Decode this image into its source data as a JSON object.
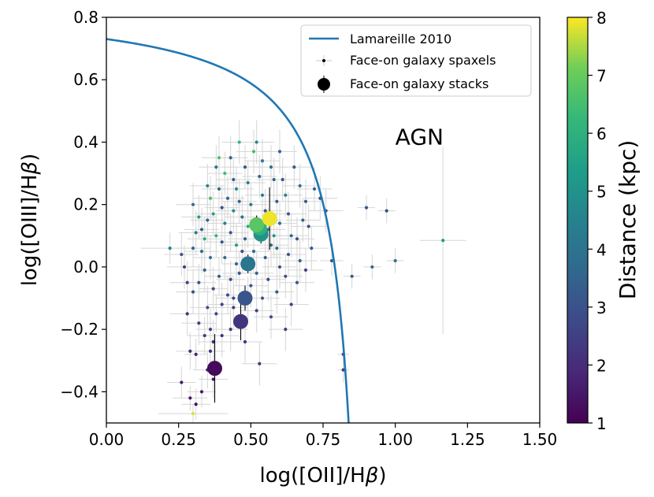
{
  "chart_data": {
    "type": "scatter",
    "xlabel": "log([OII]/H",
    "ylabel": "log([OIII]/H",
    "label_greek": "β",
    "label_close": ")",
    "xlim": [
      0.0,
      1.5
    ],
    "ylim": [
      -0.5,
      0.8
    ],
    "x_ticks": [
      0.0,
      0.25,
      0.5,
      0.75,
      1.0,
      1.25,
      1.5
    ],
    "x_tick_labels": [
      "0.00",
      "0.25",
      "0.50",
      "0.75",
      "1.00",
      "1.25",
      "1.50"
    ],
    "y_ticks": [
      -0.4,
      -0.2,
      0.0,
      0.2,
      0.4,
      0.6,
      0.8
    ],
    "y_tick_labels": [
      "−0.4",
      "−0.2",
      "0.0",
      "0.2",
      "0.4",
      "0.6",
      "0.8"
    ],
    "annotation": {
      "text": "AGN",
      "x": 1.0,
      "y": 0.4
    },
    "curve": {
      "name": "Lamareille 2010",
      "color": "#1f77b4",
      "formula": "0.11/(x-0.92)+0.85"
    },
    "legend": {
      "position": "upper-right",
      "entries": [
        "Lamareille 2010",
        "Face-on galaxy spaxels",
        "Face-on galaxy stacks"
      ]
    },
    "colorbar": {
      "label": "Distance (kpc)",
      "range": [
        1,
        8
      ],
      "ticks": [
        1,
        2,
        3,
        4,
        5,
        6,
        7,
        8
      ],
      "tick_labels": [
        "1",
        "2",
        "3",
        "4",
        "5",
        "6",
        "7",
        "8"
      ],
      "colormap": "viridis"
    },
    "stacks": [
      {
        "x": 0.375,
        "y": -0.325,
        "dist": 1.2,
        "xerr": 0.01,
        "yerr": 0.11
      },
      {
        "x": 0.465,
        "y": -0.175,
        "dist": 2.2,
        "xerr": 0.01,
        "yerr": 0.06
      },
      {
        "x": 0.48,
        "y": -0.1,
        "dist": 3.1,
        "xerr": 0.01,
        "yerr": 0.04
      },
      {
        "x": 0.49,
        "y": 0.01,
        "dist": 4.1,
        "xerr": 0.01,
        "yerr": 0.03
      },
      {
        "x": 0.535,
        "y": 0.105,
        "dist": 5.0,
        "xerr": 0.012,
        "yerr": 0.03
      },
      {
        "x": 0.53,
        "y": 0.125,
        "dist": 6.0,
        "xerr": 0.012,
        "yerr": 0.03
      },
      {
        "x": 0.52,
        "y": 0.135,
        "dist": 6.8,
        "xerr": 0.01,
        "yerr": 0.03
      },
      {
        "x": 0.565,
        "y": 0.155,
        "dist": 7.9,
        "xerr": 0.012,
        "yerr": 0.1
      }
    ],
    "spaxels": [
      {
        "x": 0.22,
        "y": 0.06,
        "d": 4.5,
        "xe": 0.1,
        "ye": 0.05
      },
      {
        "x": 0.26,
        "y": -0.37,
        "d": 1.5,
        "xe": 0.05,
        "ye": 0.05
      },
      {
        "x": 0.29,
        "y": -0.42,
        "d": 1.4,
        "xe": 0.06,
        "ye": 0.04
      },
      {
        "x": 0.3,
        "y": -0.47,
        "d": 7.8,
        "xe": 0.12,
        "ye": 0.03
      },
      {
        "x": 0.29,
        "y": -0.27,
        "d": 2.0,
        "xe": 0.05,
        "ye": 0.06
      },
      {
        "x": 0.31,
        "y": -0.28,
        "d": 1.8,
        "xe": 0.04,
        "ye": 0.05
      },
      {
        "x": 0.33,
        "y": -0.4,
        "d": 1.5,
        "xe": 0.05,
        "ye": 0.05
      },
      {
        "x": 0.34,
        "y": -0.22,
        "d": 2.3,
        "xe": 0.06,
        "ye": 0.06
      },
      {
        "x": 0.36,
        "y": -0.27,
        "d": 2.1,
        "xe": 0.05,
        "ye": 0.06
      },
      {
        "x": 0.37,
        "y": -0.24,
        "d": 2.0,
        "xe": 0.05,
        "ye": 0.07
      },
      {
        "x": 0.36,
        "y": -0.2,
        "d": 2.6,
        "xe": 0.05,
        "ye": 0.07
      },
      {
        "x": 0.38,
        "y": -0.15,
        "d": 2.7,
        "xe": 0.05,
        "ye": 0.06
      },
      {
        "x": 0.35,
        "y": -0.13,
        "d": 2.9,
        "xe": 0.06,
        "ye": 0.07
      },
      {
        "x": 0.3,
        "y": -0.08,
        "d": 3.0,
        "xe": 0.06,
        "ye": 0.07
      },
      {
        "x": 0.32,
        "y": -0.05,
        "d": 3.2,
        "xe": 0.06,
        "ye": 0.06
      },
      {
        "x": 0.34,
        "y": -0.01,
        "d": 3.5,
        "xe": 0.06,
        "ye": 0.07
      },
      {
        "x": 0.37,
        "y": -0.07,
        "d": 2.8,
        "xe": 0.05,
        "ye": 0.07
      },
      {
        "x": 0.39,
        "y": -0.03,
        "d": 3.4,
        "xe": 0.05,
        "ye": 0.06
      },
      {
        "x": 0.4,
        "y": -0.12,
        "d": 2.5,
        "xe": 0.05,
        "ye": 0.07
      },
      {
        "x": 0.42,
        "y": -0.09,
        "d": 2.7,
        "xe": 0.05,
        "ye": 0.06
      },
      {
        "x": 0.44,
        "y": -0.13,
        "d": 2.4,
        "xe": 0.05,
        "ye": 0.07
      },
      {
        "x": 0.43,
        "y": -0.04,
        "d": 3.0,
        "xe": 0.05,
        "ye": 0.06
      },
      {
        "x": 0.45,
        "y": 0.01,
        "d": 3.6,
        "xe": 0.05,
        "ye": 0.07
      },
      {
        "x": 0.41,
        "y": 0.03,
        "d": 3.8,
        "xe": 0.06,
        "ye": 0.07
      },
      {
        "x": 0.36,
        "y": 0.03,
        "d": 3.9,
        "xe": 0.06,
        "ye": 0.07
      },
      {
        "x": 0.33,
        "y": 0.05,
        "d": 4.0,
        "xe": 0.06,
        "ye": 0.07
      },
      {
        "x": 0.3,
        "y": 0.06,
        "d": 3.7,
        "xe": 0.06,
        "ye": 0.06
      },
      {
        "x": 0.31,
        "y": 0.11,
        "d": 4.2,
        "xe": 0.06,
        "ye": 0.07
      },
      {
        "x": 0.33,
        "y": 0.12,
        "d": 3.3,
        "xe": 0.06,
        "ye": 0.07
      },
      {
        "x": 0.35,
        "y": 0.15,
        "d": 3.5,
        "xe": 0.06,
        "ye": 0.07
      },
      {
        "x": 0.37,
        "y": 0.17,
        "d": 5.5,
        "xe": 0.06,
        "ye": 0.07
      },
      {
        "x": 0.36,
        "y": 0.22,
        "d": 6.6,
        "xe": 0.06,
        "ye": 0.07
      },
      {
        "x": 0.39,
        "y": 0.25,
        "d": 3.8,
        "xe": 0.06,
        "ye": 0.07
      },
      {
        "x": 0.4,
        "y": 0.19,
        "d": 3.0,
        "xe": 0.06,
        "ye": 0.07
      },
      {
        "x": 0.41,
        "y": 0.14,
        "d": 4.5,
        "xe": 0.06,
        "ye": 0.07
      },
      {
        "x": 0.43,
        "y": 0.11,
        "d": 3.2,
        "xe": 0.06,
        "ye": 0.06
      },
      {
        "x": 0.44,
        "y": 0.18,
        "d": 5.0,
        "xe": 0.06,
        "ye": 0.07
      },
      {
        "x": 0.42,
        "y": 0.22,
        "d": 3.5,
        "xe": 0.06,
        "ye": 0.07
      },
      {
        "x": 0.45,
        "y": 0.25,
        "d": 4.8,
        "xe": 0.06,
        "ye": 0.07
      },
      {
        "x": 0.44,
        "y": 0.28,
        "d": 3.3,
        "xe": 0.06,
        "ye": 0.07
      },
      {
        "x": 0.46,
        "y": 0.21,
        "d": 3.6,
        "xe": 0.06,
        "ye": 0.07
      },
      {
        "x": 0.47,
        "y": 0.16,
        "d": 4.0,
        "xe": 0.06,
        "ye": 0.07
      },
      {
        "x": 0.48,
        "y": 0.09,
        "d": 3.4,
        "xe": 0.06,
        "ye": 0.07
      },
      {
        "x": 0.47,
        "y": 0.05,
        "d": 2.9,
        "xe": 0.06,
        "ye": 0.07
      },
      {
        "x": 0.46,
        "y": -0.02,
        "d": 3.3,
        "xe": 0.06,
        "ye": 0.07
      },
      {
        "x": 0.5,
        "y": -0.06,
        "d": 3.1,
        "xe": 0.06,
        "ye": 0.07
      },
      {
        "x": 0.52,
        "y": -0.02,
        "d": 3.5,
        "xe": 0.06,
        "ye": 0.07
      },
      {
        "x": 0.51,
        "y": 0.05,
        "d": 3.9,
        "xe": 0.06,
        "ye": 0.07
      },
      {
        "x": 0.49,
        "y": 0.13,
        "d": 5.8,
        "xe": 0.06,
        "ye": 0.07
      },
      {
        "x": 0.5,
        "y": 0.2,
        "d": 4.1,
        "xe": 0.06,
        "ye": 0.07
      },
      {
        "x": 0.49,
        "y": 0.27,
        "d": 4.4,
        "xe": 0.06,
        "ye": 0.07
      },
      {
        "x": 0.48,
        "y": 0.32,
        "d": 3.2,
        "xe": 0.06,
        "ye": 0.07
      },
      {
        "x": 0.51,
        "y": 0.37,
        "d": 6.5,
        "xe": 0.06,
        "ye": 0.07
      },
      {
        "x": 0.53,
        "y": 0.29,
        "d": 3.5,
        "xe": 0.06,
        "ye": 0.07
      },
      {
        "x": 0.54,
        "y": 0.23,
        "d": 4.2,
        "xe": 0.06,
        "ye": 0.07
      },
      {
        "x": 0.55,
        "y": 0.18,
        "d": 3.0,
        "xe": 0.06,
        "ye": 0.07
      },
      {
        "x": 0.56,
        "y": 0.12,
        "d": 4.6,
        "xe": 0.06,
        "ye": 0.07
      },
      {
        "x": 0.57,
        "y": 0.07,
        "d": 3.7,
        "xe": 0.06,
        "ye": 0.07
      },
      {
        "x": 0.55,
        "y": 0.03,
        "d": 3.2,
        "xe": 0.06,
        "ye": 0.07
      },
      {
        "x": 0.56,
        "y": -0.04,
        "d": 2.8,
        "xe": 0.06,
        "ye": 0.07
      },
      {
        "x": 0.54,
        "y": -0.1,
        "d": 3.1,
        "xe": 0.06,
        "ye": 0.07
      },
      {
        "x": 0.52,
        "y": -0.14,
        "d": 2.6,
        "xe": 0.06,
        "ye": 0.07
      },
      {
        "x": 0.57,
        "y": -0.16,
        "d": 2.7,
        "xe": 0.06,
        "ye": 0.07
      },
      {
        "x": 0.59,
        "y": -0.08,
        "d": 3.3,
        "xe": 0.06,
        "ye": 0.07
      },
      {
        "x": 0.6,
        "y": 0.0,
        "d": 3.0,
        "xe": 0.06,
        "ye": 0.07
      },
      {
        "x": 0.59,
        "y": 0.06,
        "d": 4.1,
        "xe": 0.06,
        "ye": 0.07
      },
      {
        "x": 0.6,
        "y": 0.14,
        "d": 3.8,
        "xe": 0.06,
        "ye": 0.07
      },
      {
        "x": 0.59,
        "y": 0.21,
        "d": 3.4,
        "xe": 0.06,
        "ye": 0.07
      },
      {
        "x": 0.58,
        "y": 0.28,
        "d": 3.6,
        "xe": 0.06,
        "ye": 0.07
      },
      {
        "x": 0.57,
        "y": 0.32,
        "d": 4.0,
        "xe": 0.06,
        "ye": 0.07
      },
      {
        "x": 0.61,
        "y": 0.28,
        "d": 3.0,
        "xe": 0.06,
        "ye": 0.07
      },
      {
        "x": 0.62,
        "y": 0.23,
        "d": 4.5,
        "xe": 0.06,
        "ye": 0.07
      },
      {
        "x": 0.63,
        "y": 0.17,
        "d": 3.2,
        "xe": 0.06,
        "ye": 0.07
      },
      {
        "x": 0.64,
        "y": 0.1,
        "d": 3.6,
        "xe": 0.06,
        "ye": 0.07
      },
      {
        "x": 0.63,
        "y": 0.04,
        "d": 3.1,
        "xe": 0.06,
        "ye": 0.07
      },
      {
        "x": 0.62,
        "y": -0.03,
        "d": 2.8,
        "xe": 0.06,
        "ye": 0.07
      },
      {
        "x": 0.64,
        "y": -0.12,
        "d": 2.5,
        "xe": 0.06,
        "ye": 0.07
      },
      {
        "x": 0.66,
        "y": -0.05,
        "d": 3.2,
        "xe": 0.06,
        "ye": 0.07
      },
      {
        "x": 0.67,
        "y": 0.02,
        "d": 3.4,
        "xe": 0.06,
        "ye": 0.07
      },
      {
        "x": 0.66,
        "y": 0.09,
        "d": 3.0,
        "xe": 0.06,
        "ye": 0.07
      },
      {
        "x": 0.68,
        "y": 0.15,
        "d": 3.7,
        "xe": 0.06,
        "ye": 0.07
      },
      {
        "x": 0.69,
        "y": 0.21,
        "d": 3.2,
        "xe": 0.06,
        "ye": 0.07
      },
      {
        "x": 0.7,
        "y": 0.13,
        "d": 2.9,
        "xe": 0.06,
        "ye": 0.07
      },
      {
        "x": 0.71,
        "y": 0.06,
        "d": 3.3,
        "xe": 0.06,
        "ye": 0.07
      },
      {
        "x": 0.69,
        "y": -0.01,
        "d": 2.6,
        "xe": 0.06,
        "ye": 0.07
      },
      {
        "x": 0.72,
        "y": 0.25,
        "d": 3.5,
        "xe": 0.06,
        "ye": 0.07
      },
      {
        "x": 0.67,
        "y": 0.26,
        "d": 3.9,
        "xe": 0.06,
        "ye": 0.07
      },
      {
        "x": 0.65,
        "y": 0.32,
        "d": 3.3,
        "xe": 0.06,
        "ye": 0.07
      },
      {
        "x": 0.54,
        "y": 0.34,
        "d": 4.4,
        "xe": 0.06,
        "ye": 0.07
      },
      {
        "x": 0.41,
        "y": 0.3,
        "d": 6.4,
        "xe": 0.06,
        "ye": 0.07
      },
      {
        "x": 0.38,
        "y": 0.32,
        "d": 4.1,
        "xe": 0.06,
        "ye": 0.07
      },
      {
        "x": 0.39,
        "y": 0.35,
        "d": 6.7,
        "xe": 0.06,
        "ye": 0.07
      },
      {
        "x": 0.34,
        "y": 0.09,
        "d": 5.9,
        "xe": 0.06,
        "ye": 0.07
      },
      {
        "x": 0.27,
        "y": 0.0,
        "d": 2.4,
        "xe": 0.06,
        "ye": 0.07
      },
      {
        "x": 0.26,
        "y": 0.04,
        "d": 3.0,
        "xe": 0.06,
        "ye": 0.07
      },
      {
        "x": 0.28,
        "y": -0.15,
        "d": 2.2,
        "xe": 0.06,
        "ye": 0.07
      },
      {
        "x": 0.32,
        "y": -0.18,
        "d": 2.5,
        "xe": 0.06,
        "ye": 0.07
      },
      {
        "x": 0.4,
        "y": -0.22,
        "d": 2.0,
        "xe": 0.06,
        "ye": 0.07
      },
      {
        "x": 0.43,
        "y": -0.2,
        "d": 2.3,
        "xe": 0.06,
        "ye": 0.07
      },
      {
        "x": 0.48,
        "y": -0.24,
        "d": 2.2,
        "xe": 0.06,
        "ye": 0.07
      },
      {
        "x": 0.53,
        "y": -0.31,
        "d": 2.3,
        "xe": 0.06,
        "ye": 0.07
      },
      {
        "x": 0.62,
        "y": -0.2,
        "d": 2.4,
        "xe": 0.06,
        "ye": 0.07
      },
      {
        "x": 0.74,
        "y": 0.22,
        "d": 3.0,
        "xe": 0.06,
        "ye": 0.07
      },
      {
        "x": 0.76,
        "y": 0.18,
        "d": 3.1,
        "xe": 0.06,
        "ye": 0.07
      },
      {
        "x": 0.78,
        "y": 0.02,
        "d": 3.2,
        "xe": 0.04,
        "ye": 0.05
      },
      {
        "x": 0.82,
        "y": -0.28,
        "d": 2.6,
        "xe": 0.02,
        "ye": 0.05
      },
      {
        "x": 0.82,
        "y": -0.33,
        "d": 2.4,
        "xe": 0.02,
        "ye": 0.04
      },
      {
        "x": 0.85,
        "y": -0.03,
        "d": 3.3,
        "xe": 0.03,
        "ye": 0.04
      },
      {
        "x": 0.92,
        "y": 0.0,
        "d": 3.5,
        "xe": 0.03,
        "ye": 0.04
      },
      {
        "x": 0.9,
        "y": 0.19,
        "d": 3.2,
        "xe": 0.03,
        "ye": 0.04
      },
      {
        "x": 0.97,
        "y": 0.18,
        "d": 3.0,
        "xe": 0.03,
        "ye": 0.04
      },
      {
        "x": 1.0,
        "y": 0.02,
        "d": 4.0,
        "xe": 0.03,
        "ye": 0.04
      },
      {
        "x": 1.165,
        "y": 0.085,
        "d": 5.2,
        "xe": 0.08,
        "ye": 0.3
      },
      {
        "x": 0.3,
        "y": 0.2,
        "d": 3.9,
        "xe": 0.06,
        "ye": 0.07
      },
      {
        "x": 0.32,
        "y": 0.16,
        "d": 5.3,
        "xe": 0.06,
        "ye": 0.07
      },
      {
        "x": 0.35,
        "y": 0.26,
        "d": 4.6,
        "xe": 0.06,
        "ye": 0.07
      },
      {
        "x": 0.43,
        "y": 0.35,
        "d": 3.6,
        "xe": 0.06,
        "ye": 0.07
      },
      {
        "x": 0.46,
        "y": 0.4,
        "d": 6.3,
        "xe": 0.06,
        "ye": 0.07
      },
      {
        "x": 0.52,
        "y": 0.4,
        "d": 4.7,
        "xe": 0.06,
        "ye": 0.07
      },
      {
        "x": 0.6,
        "y": 0.37,
        "d": 3.4,
        "xe": 0.06,
        "ye": 0.07
      },
      {
        "x": 0.38,
        "y": 0.1,
        "d": 6.2,
        "xe": 0.06,
        "ye": 0.07
      },
      {
        "x": 0.45,
        "y": 0.07,
        "d": 5.4,
        "xe": 0.06,
        "ye": 0.07
      },
      {
        "x": 0.4,
        "y": 0.08,
        "d": 3.1,
        "xe": 0.06,
        "ye": 0.07
      },
      {
        "x": 0.28,
        "y": -0.05,
        "d": 2.7,
        "xe": 0.06,
        "ye": 0.07
      },
      {
        "x": 0.35,
        "y": -0.33,
        "d": 1.7,
        "xe": 0.05,
        "ye": 0.06
      },
      {
        "x": 0.37,
        "y": -0.36,
        "d": 1.6,
        "xe": 0.05,
        "ye": 0.06
      },
      {
        "x": 0.31,
        "y": -0.44,
        "d": 1.3,
        "xe": 0.05,
        "ye": 0.05
      },
      {
        "x": 0.44,
        "y": -0.1,
        "d": 2.7,
        "xe": 0.06,
        "ye": 0.07
      },
      {
        "x": 0.49,
        "y": -0.1,
        "d": 3.0,
        "xe": 0.06,
        "ye": 0.07
      },
      {
        "x": 0.55,
        "y": 0.15,
        "d": 7.2,
        "xe": 0.06,
        "ye": 0.07
      },
      {
        "x": 0.58,
        "y": 0.1,
        "d": 5.1,
        "xe": 0.06,
        "ye": 0.07
      }
    ]
  }
}
